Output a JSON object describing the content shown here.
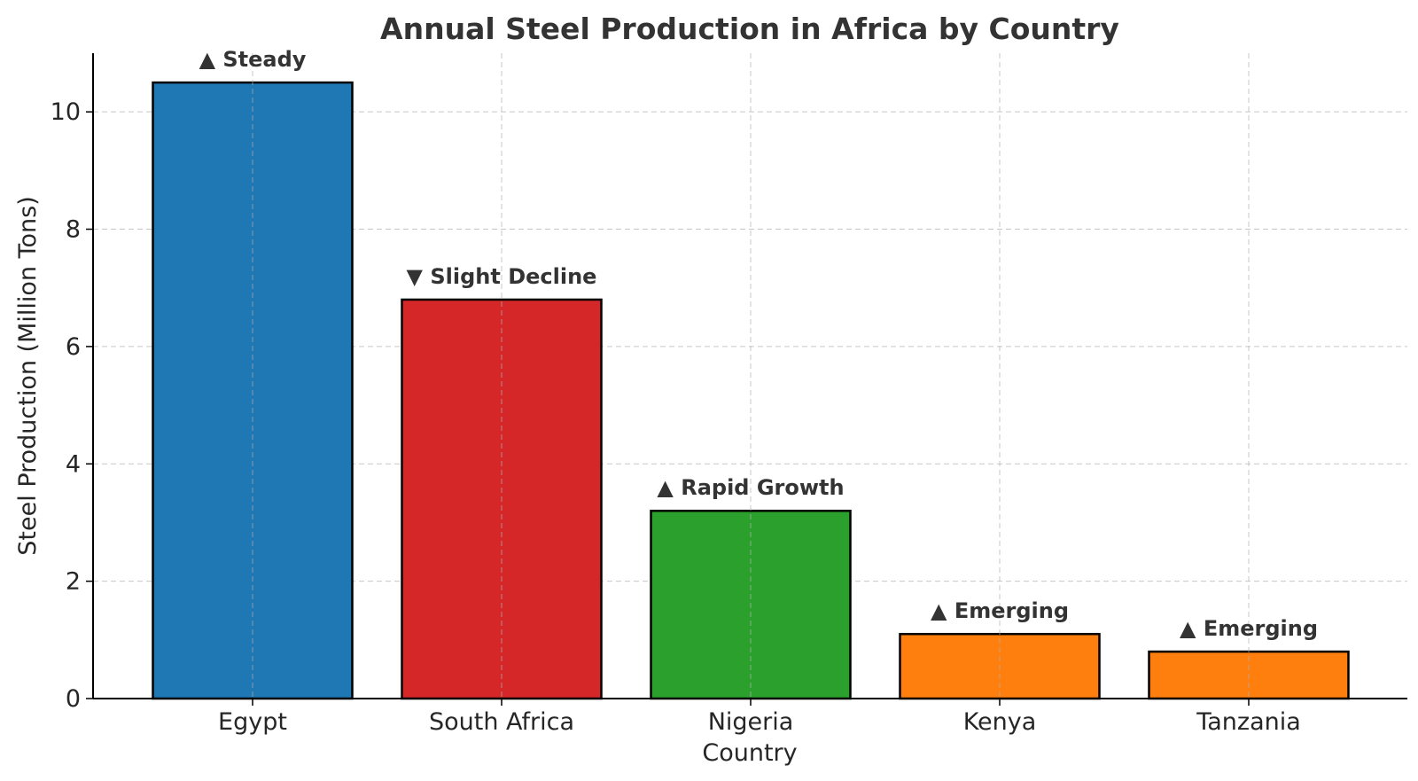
{
  "chart_data": {
    "type": "bar",
    "title": "Annual Steel Production in Africa by Country",
    "xlabel": "Country",
    "ylabel": "Steel Production (Million Tons)",
    "categories": [
      "Egypt",
      "South Africa",
      "Nigeria",
      "Kenya",
      "Tanzania"
    ],
    "values": [
      10.5,
      6.8,
      3.2,
      1.1,
      0.8
    ],
    "annotations": [
      "▲ Steady",
      "▼ Slight Decline",
      "▲ Rapid Growth",
      "▲ Emerging",
      "▲ Emerging"
    ],
    "colors": [
      "#1f77b4",
      "#d62728",
      "#2ca02c",
      "#ff7f0e",
      "#ff7f0e"
    ],
    "ylim": [
      0,
      11
    ],
    "yticks": [
      0,
      2,
      4,
      6,
      8,
      10
    ],
    "grid": true
  }
}
